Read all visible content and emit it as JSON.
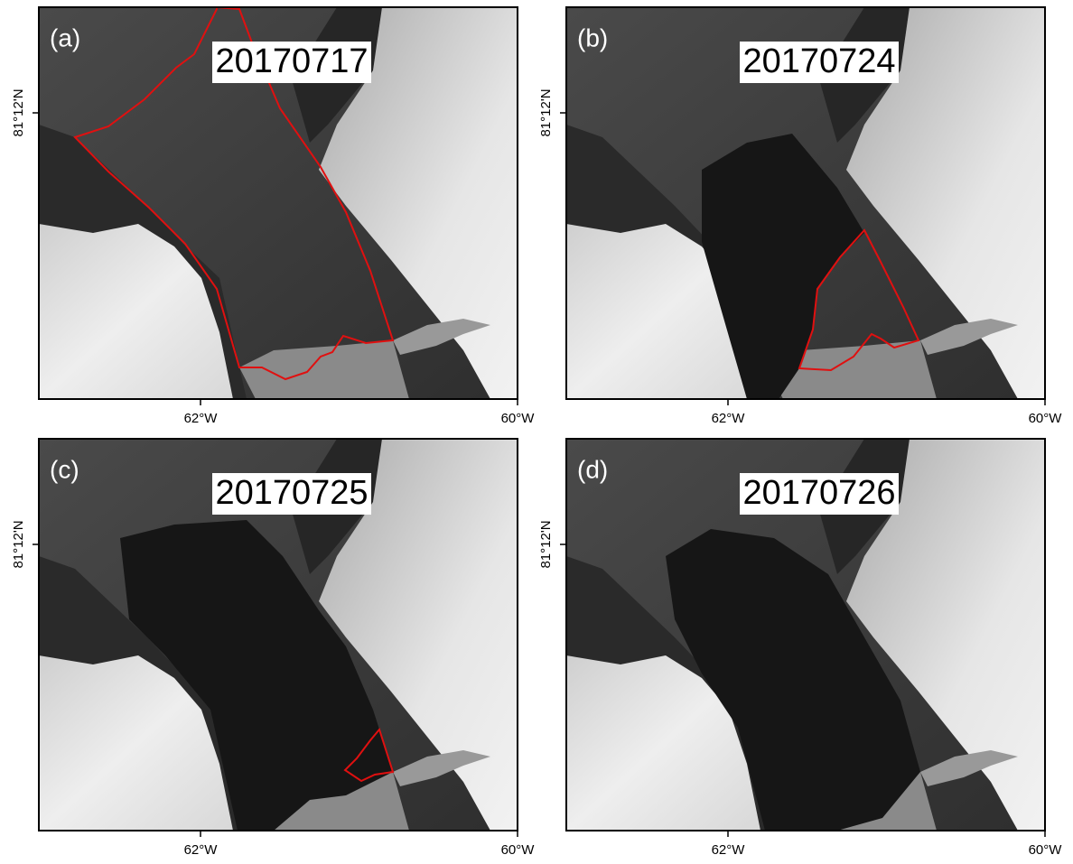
{
  "panels": [
    {
      "label": "(a)",
      "date": "20170717",
      "lat_label": "81°12'N",
      "lon_labels": [
        "62°W",
        "60°W"
      ]
    },
    {
      "label": "(b)",
      "date": "20170724",
      "lat_label": "81°12'N",
      "lon_labels": [
        "62°W",
        "60°W"
      ]
    },
    {
      "label": "(c)",
      "date": "20170725",
      "lat_label": "81°12'N",
      "lon_labels": [
        "62°W",
        "60°W"
      ]
    },
    {
      "label": "(d)",
      "date": "20170726",
      "lat_label": "81°12'N",
      "lon_labels": [
        "62°W",
        "60°W"
      ]
    }
  ]
}
